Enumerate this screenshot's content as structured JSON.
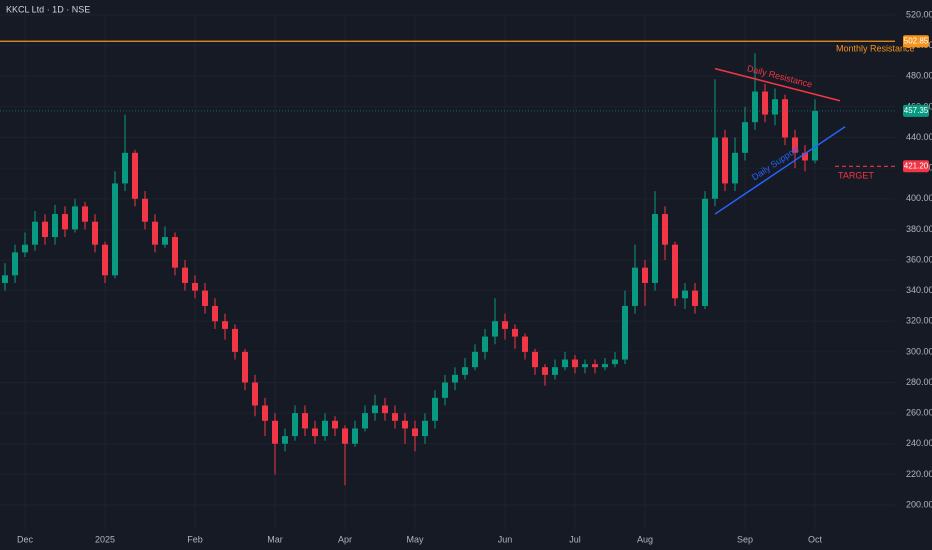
{
  "chart_data": {
    "type": "candlestick",
    "title": "KKCL Ltd · 1D · NSE",
    "xlim": [
      -0.5,
      89
    ],
    "xticks": [
      {
        "value": 2,
        "label": "Dec"
      },
      {
        "value": 10,
        "label": "2025"
      },
      {
        "value": 19,
        "label": "Feb"
      },
      {
        "value": 27,
        "label": "Mar"
      },
      {
        "value": 34,
        "label": "Apr"
      },
      {
        "value": 41,
        "label": "May"
      },
      {
        "value": 50,
        "label": "Jun"
      },
      {
        "value": 57,
        "label": "Jul"
      },
      {
        "value": 64,
        "label": "Aug"
      },
      {
        "value": 74,
        "label": "Sep"
      },
      {
        "value": 81,
        "label": "Oct"
      }
    ],
    "ylim": [
      200,
      520
    ],
    "yticks": [
      {
        "value": 200,
        "label": "200.00"
      },
      {
        "value": 220,
        "label": "220.00"
      },
      {
        "value": 240,
        "label": "240.00"
      },
      {
        "value": 260,
        "label": "260.00"
      },
      {
        "value": 280,
        "label": "280.00"
      },
      {
        "value": 300,
        "label": "300.00"
      },
      {
        "value": 320,
        "label": "320.00"
      },
      {
        "value": 340,
        "label": "340.00"
      },
      {
        "value": 360,
        "label": "360.00"
      },
      {
        "value": 380,
        "label": "380.00"
      },
      {
        "value": 400,
        "label": "400.00"
      },
      {
        "value": 420,
        "label": "420.00"
      },
      {
        "value": 440,
        "label": "440.00"
      },
      {
        "value": 460,
        "label": "460.00"
      },
      {
        "value": 480,
        "label": "480.00"
      },
      {
        "value": 500,
        "label": "500.00"
      },
      {
        "value": 520,
        "label": "520.00"
      }
    ],
    "up_color": "#089981",
    "down_color": "#f23645",
    "open": [
      345,
      350,
      365,
      370,
      385,
      375,
      390,
      380,
      395,
      385,
      370,
      350,
      410,
      430,
      400,
      385,
      370,
      375,
      355,
      345,
      340,
      330,
      320,
      315,
      300,
      280,
      265,
      255,
      240,
      245,
      260,
      250,
      245,
      255,
      250,
      240,
      250,
      260,
      265,
      260,
      255,
      250,
      245,
      255,
      270,
      280,
      285,
      290,
      300,
      310,
      320,
      315,
      310,
      300,
      290,
      285,
      290,
      295,
      290,
      292,
      290,
      292,
      295,
      330,
      355,
      345,
      390,
      370,
      335,
      340,
      330,
      400,
      440,
      410,
      430,
      450,
      470,
      455,
      465,
      440,
      430,
      425
    ],
    "high": [
      358,
      370,
      378,
      392,
      390,
      396,
      395,
      400,
      398,
      390,
      372,
      418,
      455,
      432,
      405,
      390,
      382,
      378,
      360,
      350,
      345,
      335,
      325,
      318,
      302,
      285,
      270,
      260,
      250,
      265,
      265,
      255,
      260,
      258,
      252,
      255,
      265,
      272,
      270,
      265,
      260,
      255,
      260,
      275,
      285,
      290,
      296,
      305,
      315,
      335,
      325,
      318,
      312,
      302,
      292,
      295,
      300,
      298,
      295,
      295,
      296,
      300,
      340,
      370,
      360,
      405,
      395,
      372,
      345,
      345,
      405,
      478,
      445,
      440,
      460,
      495,
      475,
      472,
      468,
      445,
      435,
      465
    ],
    "low": [
      340,
      345,
      362,
      366,
      370,
      370,
      375,
      378,
      380,
      365,
      345,
      348,
      405,
      395,
      380,
      365,
      368,
      350,
      340,
      335,
      325,
      315,
      308,
      295,
      275,
      258,
      245,
      220,
      235,
      242,
      245,
      240,
      242,
      245,
      213,
      238,
      248,
      255,
      255,
      250,
      240,
      235,
      240,
      250,
      265,
      275,
      282,
      288,
      295,
      305,
      308,
      302,
      295,
      285,
      278,
      282,
      288,
      286,
      286,
      286,
      288,
      290,
      292,
      325,
      330,
      340,
      360,
      330,
      328,
      325,
      328,
      395,
      405,
      405,
      425,
      445,
      450,
      448,
      435,
      420,
      418,
      423
    ],
    "close": [
      350,
      365,
      370,
      385,
      375,
      390,
      380,
      395,
      385,
      370,
      350,
      410,
      430,
      400,
      385,
      370,
      375,
      355,
      345,
      340,
      330,
      320,
      315,
      300,
      280,
      265,
      255,
      240,
      245,
      260,
      250,
      245,
      255,
      250,
      240,
      250,
      260,
      265,
      260,
      255,
      250,
      245,
      255,
      270,
      280,
      285,
      290,
      300,
      310,
      320,
      315,
      310,
      300,
      290,
      285,
      290,
      295,
      290,
      292,
      290,
      292,
      295,
      330,
      355,
      345,
      390,
      370,
      335,
      340,
      330,
      400,
      440,
      410,
      430,
      450,
      470,
      455,
      465,
      440,
      430,
      425,
      457.35
    ],
    "last_price": {
      "value": 457.35,
      "label": "457.35",
      "color": "#089981"
    },
    "levels": [
      {
        "name": "Monthly Resistance",
        "value": 502.85,
        "label": "502.85",
        "color": "#f7931a",
        "dashed": false,
        "from": -0.5
      },
      {
        "name": "TARGET",
        "value": 421.2,
        "label": "421.20",
        "color": "#f23645",
        "dashed": true,
        "from": 83
      }
    ],
    "trendlines": [
      {
        "name": "Daily Resistance",
        "x": [
          71,
          83.5
        ],
        "y": [
          485,
          464
        ],
        "color": "#f23645"
      },
      {
        "name": "Daily Support",
        "x": [
          71,
          84
        ],
        "y": [
          390,
          447
        ],
        "color": "#2962ff"
      }
    ]
  }
}
